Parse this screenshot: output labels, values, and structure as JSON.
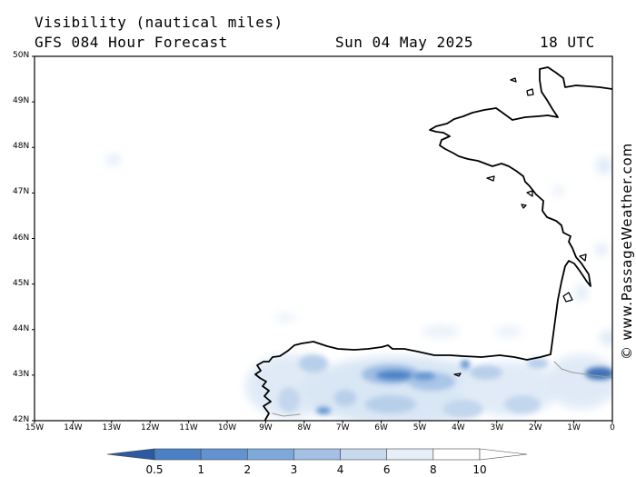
{
  "header": {
    "title": "Visibility (nautical miles)",
    "model": "GFS 084 Hour Forecast",
    "date": "Sun 04 May 2025",
    "hour": "18 UTC"
  },
  "credit": "© www.PassageWeather.com",
  "map": {
    "lat_labels": [
      "50N",
      "49N",
      "48N",
      "47N",
      "46N",
      "45N",
      "44N",
      "43N",
      "42N"
    ],
    "lon_labels": [
      "15W",
      "14W",
      "13W",
      "12W",
      "11W",
      "10W",
      "9W",
      "8W",
      "7W",
      "6W",
      "5W",
      "4W",
      "3W",
      "2W",
      "1W",
      "0"
    ],
    "lat_range": [
      42,
      50
    ],
    "lon_range": [
      -15,
      0
    ],
    "colors": {
      "coast": "#000000",
      "border": "#999999",
      "frame": "#000000"
    }
  },
  "colorbar": {
    "labels": [
      "0.5",
      "1",
      "2",
      "3",
      "4",
      "6",
      "8",
      "10"
    ],
    "colors": [
      "#3d72b8",
      "#4b80c4",
      "#6093d0",
      "#7ea8da",
      "#a3c1e5",
      "#c7d9ef",
      "#e6eef8",
      "#ffffff"
    ]
  }
}
